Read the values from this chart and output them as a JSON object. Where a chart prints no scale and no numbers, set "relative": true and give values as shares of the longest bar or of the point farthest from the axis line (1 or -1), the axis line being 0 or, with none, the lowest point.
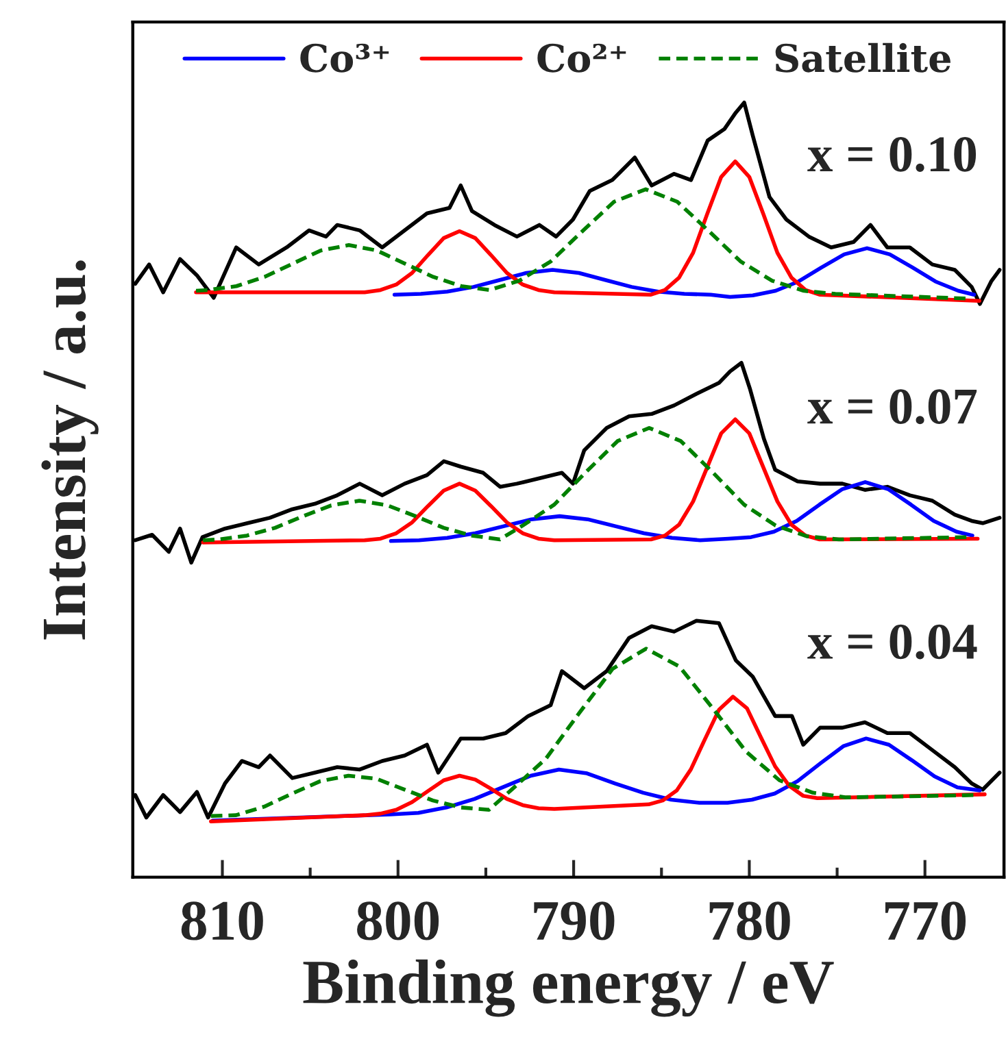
{
  "chart_data": {
    "type": "line",
    "relative": true,
    "xlabel": "Binding energy / eV",
    "ylabel": "Intensity / a.u.",
    "xlim": [
      815.1,
      765.5
    ],
    "xticks": [
      810,
      {
        "value": 805,
        "label": null
      },
      800,
      {
        "value": 795,
        "label": null
      },
      790,
      {
        "value": 785,
        "label": null
      },
      780,
      {
        "value": 775,
        "label": null
      },
      770
    ],
    "legend": "top",
    "annotations": [
      "x = 0.10",
      "x = 0.07",
      "x = 0.04"
    ],
    "series": [
      {
        "color": "#000000",
        "x": [
          814.96,
          814.17,
          813.37,
          812.41,
          811.45,
          810.49,
          809.21,
          807.93,
          806.34,
          805.06,
          804.1,
          803.46,
          802.18,
          800.9,
          799.62,
          798.35,
          797.07,
          796.43,
          795.79,
          794.51,
          793.23,
          791.95,
          791.0,
          790.04,
          789.08,
          787.8,
          786.52,
          785.56,
          784.28,
          783.32,
          782.37,
          781.41,
          780.77,
          780.29,
          779.81,
          778.85,
          777.89,
          776.61,
          775.34,
          774.06,
          773.1,
          772.14,
          770.86,
          769.58,
          768.3,
          767.34,
          766.87,
          766.23,
          765.75
        ],
        "values": [
          0.766,
          0.791,
          0.755,
          0.798,
          0.777,
          0.748,
          0.813,
          0.791,
          0.813,
          0.835,
          0.827,
          0.842,
          0.835,
          0.813,
          0.835,
          0.857,
          0.864,
          0.893,
          0.86,
          0.842,
          0.827,
          0.842,
          0.827,
          0.849,
          0.886,
          0.9,
          0.929,
          0.893,
          0.908,
          0.9,
          0.951,
          0.966,
          0.987,
          1.0,
          0.958,
          0.878,
          0.849,
          0.827,
          0.813,
          0.82,
          0.842,
          0.813,
          0.813,
          0.791,
          0.784,
          0.762,
          0.74,
          0.769,
          0.784
        ]
      },
      {
        "name": "Co³⁺",
        "color": "#0000ff",
        "x": [
          800.2,
          798.7,
          797.2,
          795.7,
          794.2,
          792.7,
          791.2,
          789.7,
          788.2,
          786.7,
          785.2,
          783.7,
          782.2,
          781.1,
          779.8,
          778.5,
          777.2,
          775.9,
          774.6,
          773.3,
          772.0,
          770.7,
          769.4,
          768.1,
          767.2
        ],
        "values": [
          0.752,
          0.753,
          0.756,
          0.762,
          0.771,
          0.78,
          0.784,
          0.78,
          0.771,
          0.762,
          0.756,
          0.753,
          0.752,
          0.749,
          0.751,
          0.757,
          0.769,
          0.787,
          0.804,
          0.812,
          0.804,
          0.787,
          0.769,
          0.757,
          0.752
        ]
      },
      {
        "name": "Co²⁺",
        "color": "#ff0000",
        "x": [
          811.5,
          801.9,
          801.0,
          800.1,
          799.2,
          798.3,
          797.4,
          796.5,
          795.6,
          794.7,
          793.8,
          792.9,
          792.0,
          791.1,
          785.6,
          784.8,
          784.0,
          783.2,
          782.4,
          781.6,
          780.8,
          780.0,
          779.2,
          778.4,
          777.6,
          776.8,
          776.0,
          766.9
        ],
        "values": [
          0.755,
          0.755,
          0.758,
          0.765,
          0.78,
          0.803,
          0.825,
          0.834,
          0.825,
          0.803,
          0.78,
          0.765,
          0.758,
          0.755,
          0.752,
          0.758,
          0.774,
          0.806,
          0.856,
          0.904,
          0.924,
          0.904,
          0.856,
          0.806,
          0.774,
          0.758,
          0.752,
          0.744
        ]
      },
      {
        "name": "Satellite",
        "color": "#008000",
        "line_style": "dashed",
        "x": [
          811.5,
          810.8,
          809.2,
          807.6,
          806.0,
          804.4,
          802.8,
          801.2,
          799.6,
          798.0,
          796.4,
          794.8,
          793.1,
          791.3,
          789.5,
          787.7,
          785.9,
          784.1,
          782.3,
          780.5,
          778.7,
          776.9,
          775.1,
          767.6
        ],
        "values": [
          0.757,
          0.758,
          0.763,
          0.775,
          0.792,
          0.809,
          0.816,
          0.809,
          0.792,
          0.775,
          0.763,
          0.758,
          0.77,
          0.795,
          0.834,
          0.872,
          0.888,
          0.872,
          0.834,
          0.795,
          0.77,
          0.757,
          0.753,
          0.747
        ]
      },
      {
        "color": "#000000",
        "x": [
          814.96,
          814.0,
          813.05,
          812.41,
          811.77,
          811.13,
          809.85,
          808.57,
          807.29,
          806.02,
          804.74,
          803.46,
          802.18,
          800.9,
          799.62,
          798.35,
          797.39,
          796.43,
          795.15,
          794.19,
          793.23,
          791.95,
          790.67,
          790.04,
          789.4,
          788.12,
          786.84,
          785.56,
          784.28,
          783.01,
          781.73,
          781.09,
          780.45,
          779.97,
          779.17,
          778.53,
          777.25,
          775.97,
          774.7,
          773.42,
          772.14,
          770.86,
          769.58,
          768.3,
          767.34,
          766.71,
          765.75
        ],
        "values": [
          0.435,
          0.442,
          0.42,
          0.45,
          0.406,
          0.439,
          0.45,
          0.457,
          0.464,
          0.475,
          0.482,
          0.493,
          0.508,
          0.493,
          0.508,
          0.519,
          0.537,
          0.53,
          0.522,
          0.504,
          0.508,
          0.515,
          0.522,
          0.508,
          0.551,
          0.58,
          0.595,
          0.598,
          0.609,
          0.624,
          0.638,
          0.653,
          0.664,
          0.631,
          0.566,
          0.526,
          0.511,
          0.508,
          0.508,
          0.5,
          0.504,
          0.493,
          0.486,
          0.468,
          0.46,
          0.457,
          0.464
        ]
      },
      {
        "color": "#0000ff",
        "x": [
          800.4,
          798.8,
          797.2,
          795.6,
          794.0,
          792.4,
          790.8,
          789.2,
          787.6,
          786.0,
          784.4,
          782.8,
          781.2,
          779.9,
          778.6,
          777.3,
          776.0,
          774.7,
          773.4,
          772.1,
          770.8,
          769.5,
          768.2,
          767.3
        ],
        "values": [
          0.434,
          0.435,
          0.438,
          0.444,
          0.453,
          0.462,
          0.466,
          0.462,
          0.453,
          0.444,
          0.438,
          0.435,
          0.437,
          0.439,
          0.446,
          0.46,
          0.481,
          0.501,
          0.51,
          0.501,
          0.481,
          0.46,
          0.446,
          0.441
        ]
      },
      {
        "color": "#ff0000",
        "x": [
          811.1,
          801.9,
          801.0,
          800.1,
          799.2,
          798.3,
          797.4,
          796.5,
          795.6,
          794.7,
          793.8,
          792.9,
          792.0,
          791.1,
          785.6,
          784.8,
          784.0,
          783.2,
          782.4,
          781.6,
          780.8,
          780.0,
          779.2,
          778.4,
          777.6,
          776.8,
          776.0,
          767.0
        ],
        "values": [
          0.432,
          0.435,
          0.437,
          0.444,
          0.458,
          0.479,
          0.499,
          0.508,
          0.499,
          0.479,
          0.458,
          0.444,
          0.437,
          0.435,
          0.436,
          0.441,
          0.455,
          0.485,
          0.529,
          0.573,
          0.591,
          0.573,
          0.529,
          0.485,
          0.455,
          0.441,
          0.436,
          0.437
        ]
      },
      {
        "color": "#008000",
        "line_style": "dashed",
        "x": [
          811.1,
          810.2,
          808.6,
          807.0,
          805.4,
          803.8,
          802.2,
          800.6,
          799.0,
          797.4,
          795.8,
          794.2,
          792.9,
          791.1,
          789.3,
          787.5,
          785.7,
          783.9,
          782.1,
          780.3,
          778.5,
          776.7,
          774.9,
          767.5
        ],
        "values": [
          0.435,
          0.436,
          0.441,
          0.451,
          0.466,
          0.48,
          0.486,
          0.48,
          0.466,
          0.451,
          0.441,
          0.436,
          0.454,
          0.481,
          0.523,
          0.563,
          0.58,
          0.563,
          0.523,
          0.481,
          0.454,
          0.44,
          0.436,
          0.439
        ]
      },
      {
        "color": "#000000",
        "x": [
          814.96,
          814.33,
          813.37,
          812.41,
          811.45,
          810.81,
          809.85,
          808.89,
          807.93,
          807.29,
          806.02,
          804.74,
          803.46,
          802.18,
          800.9,
          799.62,
          798.35,
          797.71,
          796.43,
          795.15,
          793.87,
          792.59,
          791.31,
          790.67,
          789.4,
          788.12,
          786.84,
          785.56,
          784.28,
          783.01,
          781.73,
          780.77,
          779.81,
          778.53,
          777.57,
          776.93,
          775.97,
          774.7,
          773.42,
          772.14,
          770.86,
          769.58,
          768.3,
          767.34,
          766.71,
          765.75
        ],
        "values": [
          0.106,
          0.077,
          0.106,
          0.084,
          0.11,
          0.077,
          0.121,
          0.15,
          0.142,
          0.157,
          0.128,
          0.135,
          0.142,
          0.139,
          0.15,
          0.157,
          0.171,
          0.135,
          0.179,
          0.179,
          0.186,
          0.208,
          0.222,
          0.266,
          0.244,
          0.266,
          0.309,
          0.324,
          0.317,
          0.331,
          0.328,
          0.28,
          0.259,
          0.208,
          0.208,
          0.171,
          0.193,
          0.193,
          0.2,
          0.186,
          0.186,
          0.164,
          0.142,
          0.121,
          0.113,
          0.135
        ]
      },
      {
        "color": "#0000ff",
        "x": [
          810.55,
          800.44,
          798.84,
          797.24,
          795.64,
          794.04,
          792.44,
          790.84,
          789.24,
          787.64,
          786.04,
          784.44,
          782.84,
          781.24,
          779.85,
          778.55,
          777.25,
          775.95,
          774.65,
          773.35,
          772.05,
          770.75,
          769.45,
          768.15,
          766.87
        ],
        "values": [
          0.073,
          0.081,
          0.083,
          0.09,
          0.101,
          0.116,
          0.131,
          0.139,
          0.134,
          0.121,
          0.109,
          0.1,
          0.096,
          0.096,
          0.1,
          0.108,
          0.124,
          0.147,
          0.169,
          0.179,
          0.171,
          0.151,
          0.13,
          0.116,
          0.112
        ]
      },
      {
        "color": "#ff0000",
        "x": [
          810.65,
          801.9,
          801.0,
          800.1,
          799.2,
          798.3,
          797.4,
          796.5,
          795.6,
          794.7,
          793.8,
          792.9,
          792.0,
          791.1,
          785.73,
          784.93,
          784.13,
          783.33,
          782.53,
          781.73,
          780.93,
          780.13,
          779.33,
          778.53,
          777.73,
          776.93,
          776.13,
          766.6
        ],
        "values": [
          0.072,
          0.08,
          0.082,
          0.087,
          0.097,
          0.111,
          0.125,
          0.131,
          0.126,
          0.114,
          0.101,
          0.093,
          0.089,
          0.088,
          0.094,
          0.099,
          0.112,
          0.139,
          0.178,
          0.216,
          0.233,
          0.218,
          0.18,
          0.143,
          0.118,
          0.105,
          0.102,
          0.107
        ]
      },
      {
        "color": "#008000",
        "line_style": "dashed",
        "x": [
          810.65,
          809.22,
          807.62,
          806.02,
          804.42,
          802.82,
          801.22,
          799.62,
          798.02,
          796.42,
          794.82,
          793.48,
          791.58,
          789.68,
          787.78,
          785.88,
          783.98,
          782.08,
          780.18,
          778.28,
          776.38,
          774.48,
          767.1
        ],
        "values": [
          0.079,
          0.08,
          0.091,
          0.108,
          0.124,
          0.131,
          0.127,
          0.113,
          0.099,
          0.09,
          0.087,
          0.114,
          0.153,
          0.212,
          0.269,
          0.295,
          0.272,
          0.218,
          0.162,
          0.125,
          0.109,
          0.103,
          0.106
        ]
      }
    ]
  }
}
